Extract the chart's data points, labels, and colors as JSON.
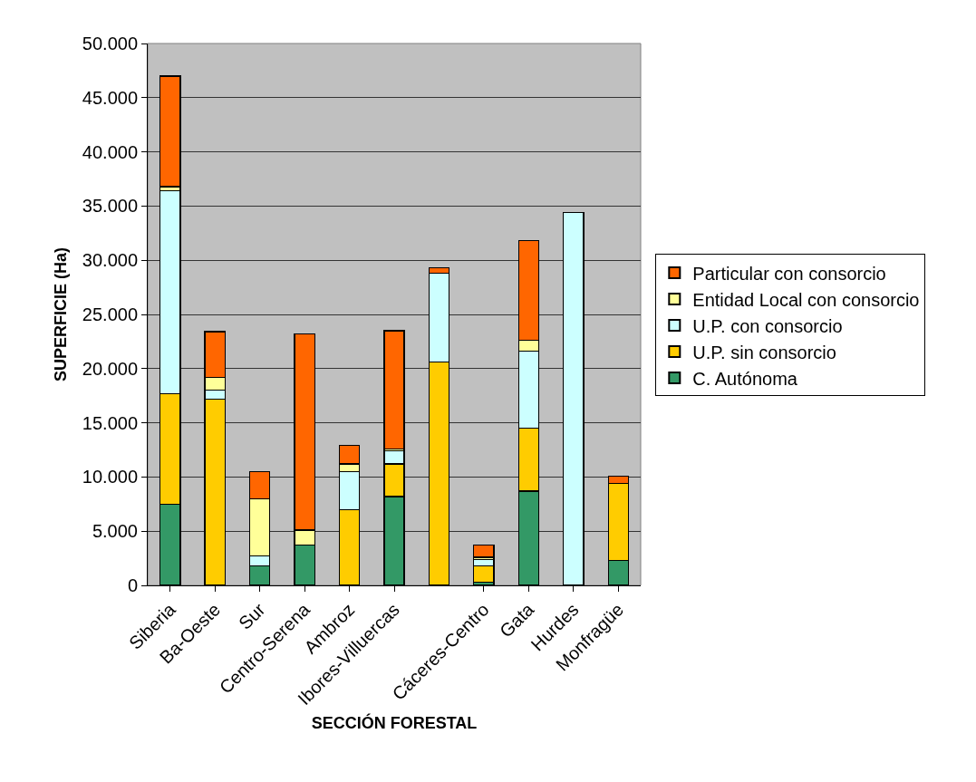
{
  "chart_data": {
    "type": "bar",
    "stacked": true,
    "xlabel": "SECCIÓN FORESTAL",
    "ylabel": "SUPERFICIE (Ha)",
    "categories": [
      "Siberia",
      "Ba-Oeste",
      "Sur",
      "Centro-Serena",
      "Ambroz",
      "Ibores-Villuercas",
      null,
      "Cáceres-Centro",
      "Gata",
      "Hurdes",
      "Monfragüe"
    ],
    "series": [
      {
        "name": "C. Autónoma",
        "color": "#339966",
        "values": [
          7500,
          0,
          1800,
          3700,
          0,
          8200,
          0,
          300,
          8700,
          0,
          2300
        ]
      },
      {
        "name": "U.P. sin consorcio",
        "color": "#ffcc00",
        "values": [
          10200,
          17200,
          0,
          0,
          7000,
          3000,
          20600,
          1500,
          5800,
          0,
          7100
        ]
      },
      {
        "name": "U.P. con consorcio",
        "color": "#ccffff",
        "values": [
          18700,
          800,
          900,
          0,
          3500,
          1200,
          8200,
          600,
          7100,
          34400,
          0
        ]
      },
      {
        "name": "Entidad Local con consorcio",
        "color": "#ffff99",
        "values": [
          400,
          1200,
          5300,
          1400,
          700,
          200,
          0,
          200,
          1000,
          0,
          0
        ]
      },
      {
        "name": "Particular con consorcio",
        "color": "#ff6600",
        "values": [
          10200,
          4200,
          2500,
          18100,
          1700,
          10900,
          500,
          1100,
          9200,
          0,
          700
        ]
      }
    ],
    "ylim": [
      0,
      50000
    ],
    "yticks": [
      {
        "value": 0,
        "label": "0"
      },
      {
        "value": 5000,
        "label": "5.000"
      },
      {
        "value": 10000,
        "label": "10.000"
      },
      {
        "value": 15000,
        "label": "15.000"
      },
      {
        "value": 20000,
        "label": "20.000"
      },
      {
        "value": 25000,
        "label": "25.000"
      },
      {
        "value": 30000,
        "label": "30.000"
      },
      {
        "value": 35000,
        "label": "35.000"
      },
      {
        "value": 40000,
        "label": "40.000"
      },
      {
        "value": 45000,
        "label": "45.000"
      },
      {
        "value": 50000,
        "label": "50.000"
      }
    ],
    "grid": "y",
    "legend": "right"
  }
}
